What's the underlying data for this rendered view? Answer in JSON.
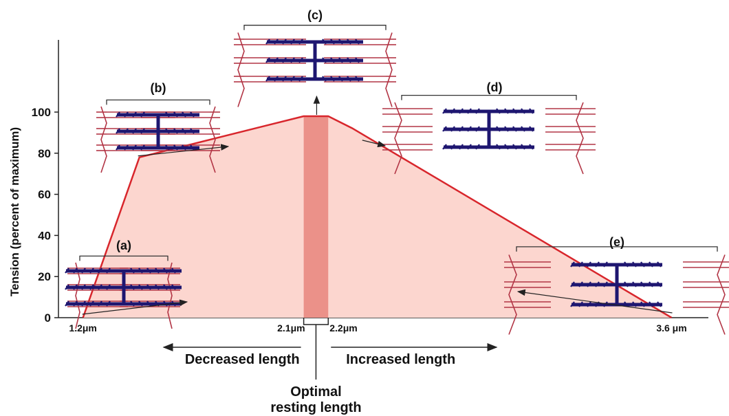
{
  "chart_data": {
    "type": "area",
    "ylabel": "Tension (percent of maximum)",
    "yticks": [
      0,
      20,
      40,
      60,
      80,
      100
    ],
    "ylim": [
      0,
      100
    ],
    "xlim": [
      1.1,
      3.75
    ],
    "x_tick_labels": [
      "1.2μm",
      "2.1μm",
      "2.2μm",
      "3.6 μm"
    ],
    "x_tick_values": [
      1.2,
      2.1,
      2.2,
      3.6
    ],
    "curve": [
      {
        "x": 1.2,
        "y": 0
      },
      {
        "x": 1.43,
        "y": 78
      },
      {
        "x": 2.1,
        "y": 98
      },
      {
        "x": 2.2,
        "y": 98
      },
      {
        "x": 2.3,
        "y": 92
      },
      {
        "x": 3.6,
        "y": 0
      }
    ],
    "optimal_band": [
      2.1,
      2.2
    ],
    "colors": {
      "fill": "#fcd6cf",
      "band": "#eb9189",
      "line": "#d8262c"
    }
  },
  "panels": [
    {
      "label": "(a)",
      "x": 1.2,
      "y": 0
    },
    {
      "label": "(b)",
      "x": 1.43,
      "y": 78
    },
    {
      "label": "(c)",
      "x": 2.15,
      "y": 98
    },
    {
      "label": "(d)",
      "x": 2.35,
      "y": 88
    },
    {
      "label": "(e)",
      "x": 3.6,
      "y": 0
    }
  ],
  "annotations": {
    "decreased": "Decreased length",
    "increased": "Increased length",
    "optimal_line1": "Optimal",
    "optimal_line2": "resting length"
  },
  "colors": {
    "myosin": "#1e1670",
    "actin": "#b23545"
  }
}
